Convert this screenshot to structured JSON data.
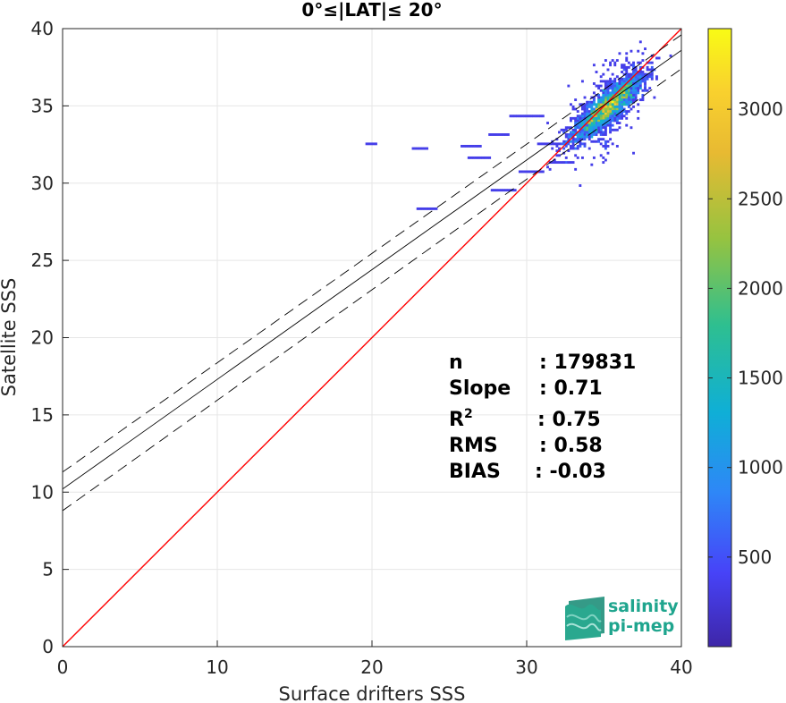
{
  "chart_data": {
    "type": "heatmap",
    "title": "0°≤|LAT|≤ 20°",
    "xlabel": "Surface drifters SSS",
    "ylabel": "Satellite SSS",
    "xlim": [
      0,
      40
    ],
    "ylim": [
      0,
      40
    ],
    "xticks": [
      "0",
      "10",
      "20",
      "30",
      "40"
    ],
    "yticks": [
      "0",
      "5",
      "10",
      "15",
      "20",
      "25",
      "30",
      "35",
      "40"
    ],
    "grid": true,
    "colorbar": {
      "range": [
        0,
        3450
      ],
      "ticks": [
        "500",
        "1000",
        "1500",
        "2000",
        "2500",
        "3000"
      ],
      "tick_values": [
        500,
        1000,
        1500,
        2000,
        2500,
        3000
      ],
      "colormap": [
        "#3e26a8",
        "#4743f8",
        "#2e87f7",
        "#0fafd6",
        "#2ebf90",
        "#96c340",
        "#e8ba32",
        "#f9d12e",
        "#f9fb15"
      ]
    },
    "lines": [
      {
        "name": "1:1",
        "x": [
          0,
          40
        ],
        "y": [
          0,
          40
        ],
        "color": "#ff0000"
      },
      {
        "name": "fit",
        "x": [
          0,
          40
        ],
        "y": [
          10.2,
          38.6
        ],
        "color": "#000000"
      },
      {
        "name": "fit + std",
        "x": [
          0,
          40
        ],
        "y": [
          11.3,
          39.6
        ],
        "color": "#000000",
        "dashed": true
      },
      {
        "name": "fit - std",
        "x": [
          0,
          40
        ],
        "y": [
          8.8,
          37.4
        ],
        "color": "#000000",
        "dashed": true
      }
    ],
    "stats": [
      {
        "label": "n",
        "value": ": 179831"
      },
      {
        "label": "Slope",
        "value": ": 0.71"
      },
      {
        "label": "R",
        "sup": "2",
        "value": ": 0.75"
      },
      {
        "label": "RMS",
        "value": ": 0.58"
      },
      {
        "label": "BIAS",
        "value": ": -0.03"
      }
    ],
    "density_center": {
      "x": 35.2,
      "y": 34.9,
      "peak_count": 3450
    }
  },
  "logo": {
    "line1": "salinity",
    "line2": "pi-mep"
  }
}
